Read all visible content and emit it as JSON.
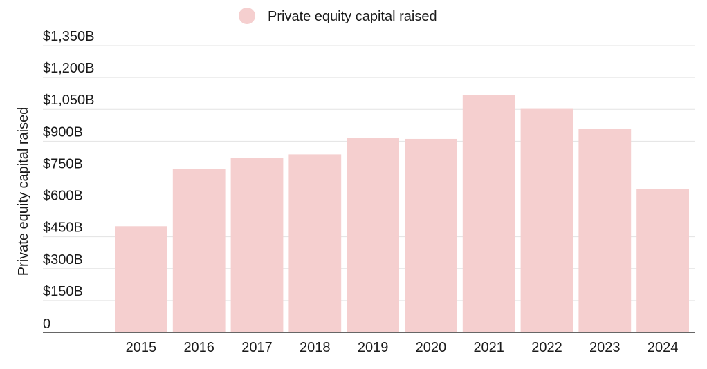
{
  "chart_data": {
    "type": "bar",
    "title": "",
    "xlabel": "",
    "ylabel": "Private equity capital raised",
    "legend": {
      "position": "top-center",
      "entries": [
        "Private equity capital raised"
      ]
    },
    "categories": [
      "2015",
      "2016",
      "2017",
      "2018",
      "2019",
      "2020",
      "2021",
      "2022",
      "2023",
      "2024"
    ],
    "series": [
      {
        "name": "Private equity capital raised",
        "values": [
          500,
          770,
          823,
          838,
          917,
          911,
          1118,
          1052,
          957,
          675
        ],
        "color": "#f5cfcf"
      }
    ],
    "yticks": [
      "0",
      "$150B",
      "$300B",
      "$450B",
      "$600B",
      "$750B",
      "$900B",
      "$1,050B",
      "$1,200B",
      "$1,350B"
    ],
    "ylim": [
      0,
      1350
    ],
    "grid": true,
    "colors": {
      "bar": "#f5cfcf",
      "grid": "#e3e3e3",
      "axis": "#333333",
      "text": "#1a1a1a"
    }
  }
}
